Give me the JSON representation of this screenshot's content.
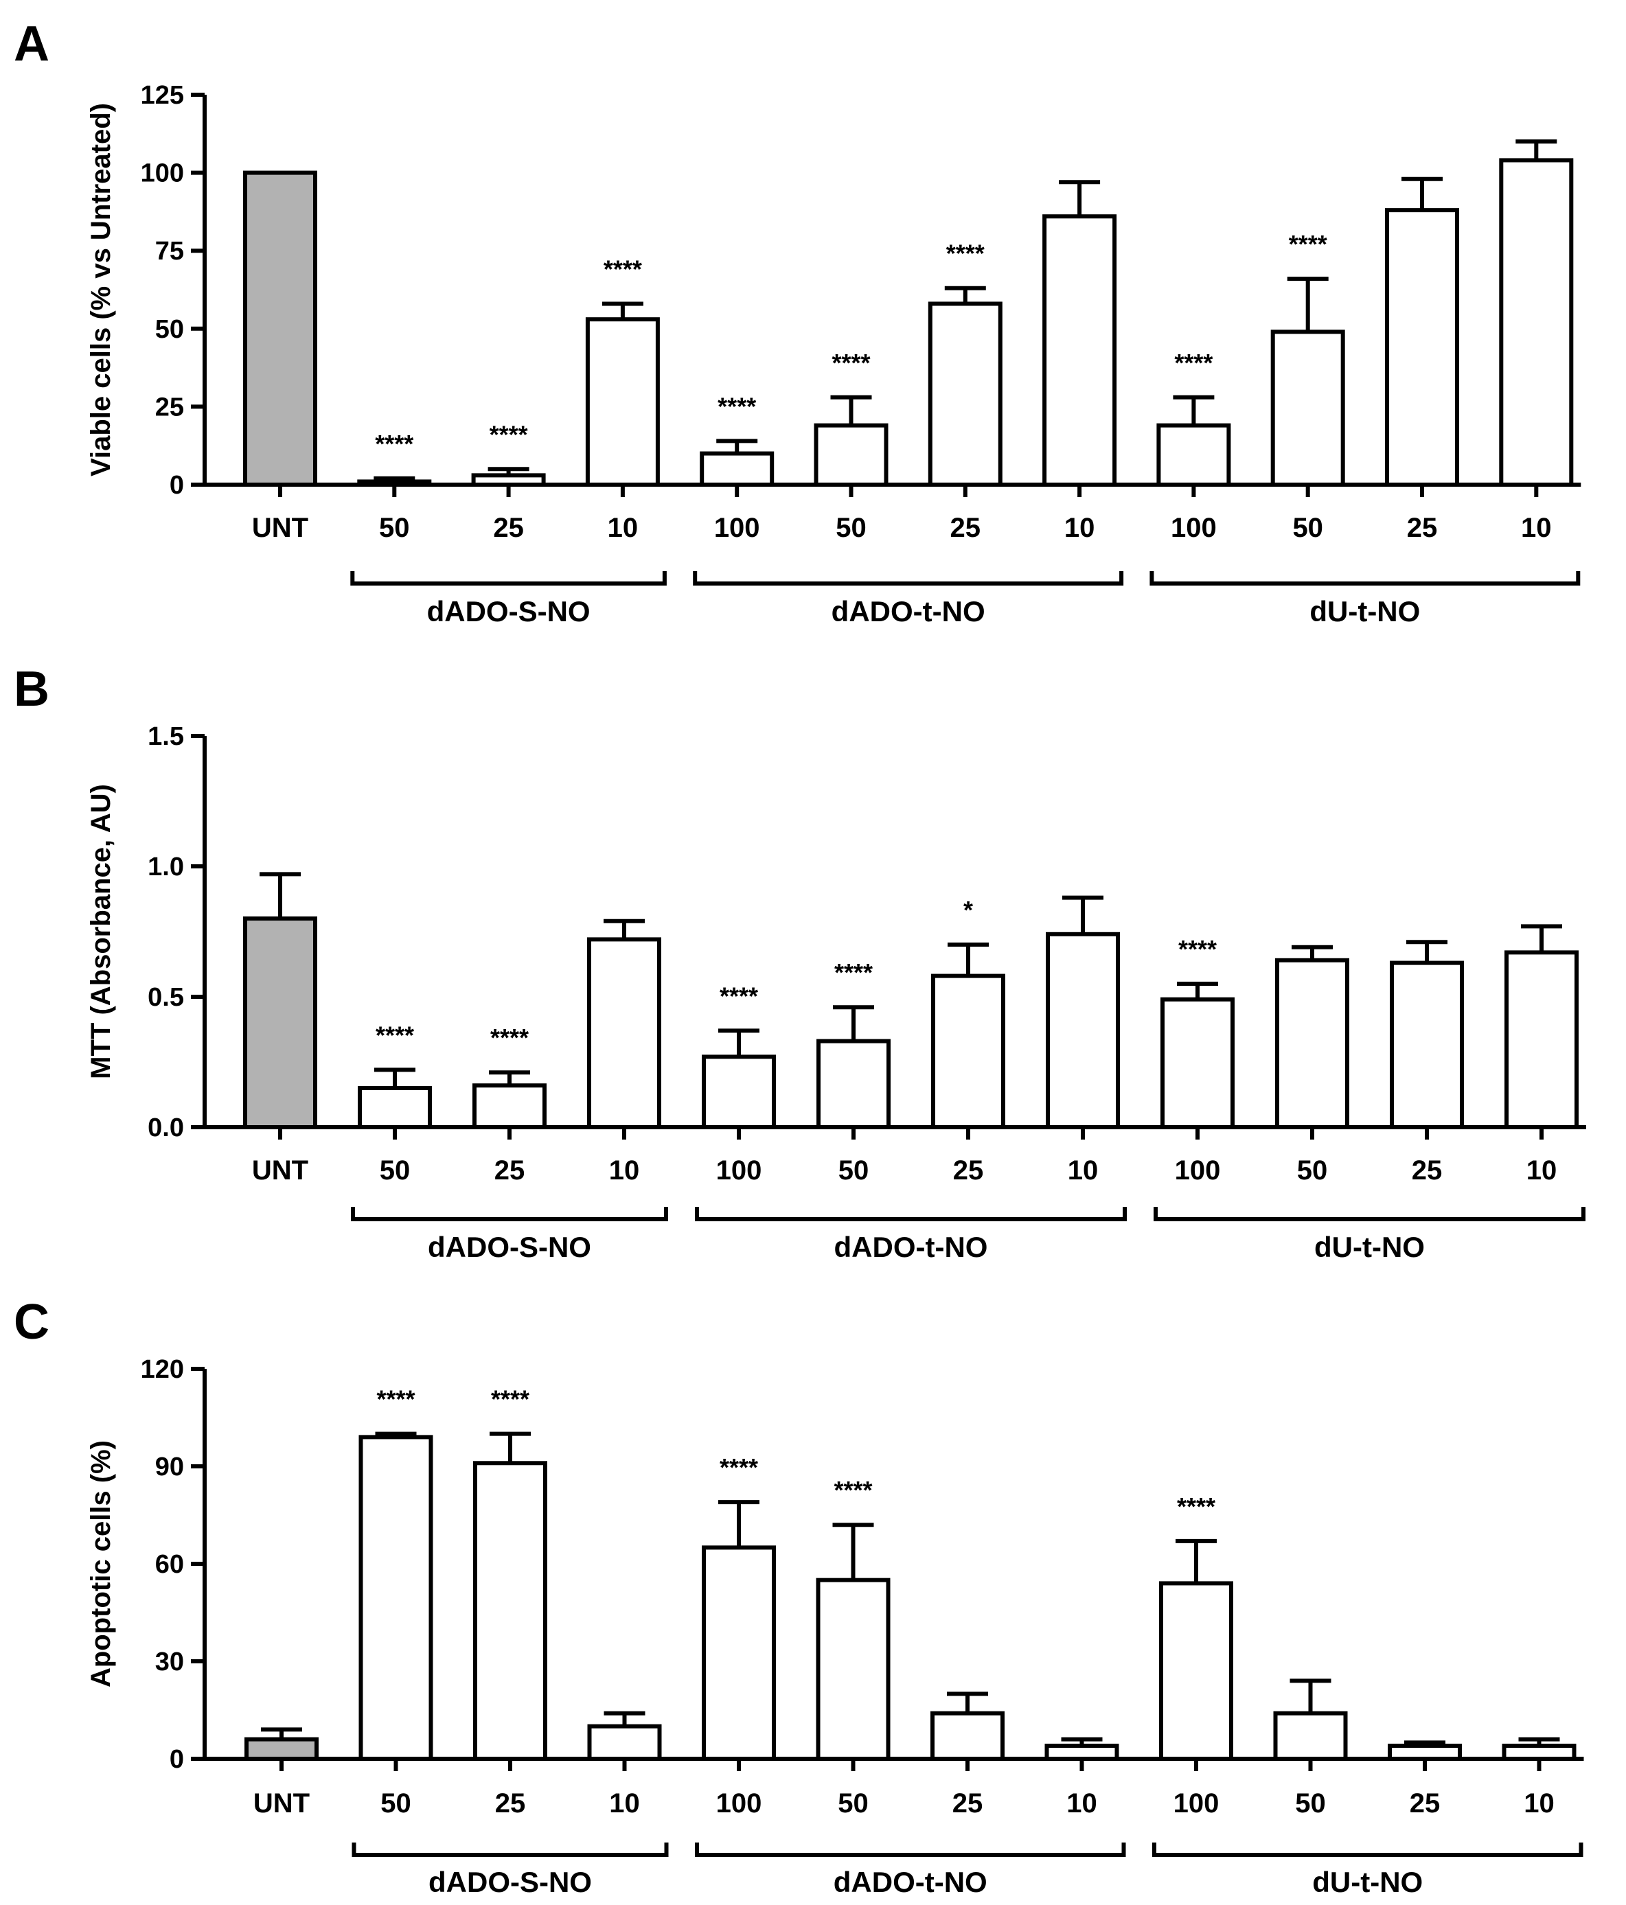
{
  "colors": {
    "control": "#b2b2b2",
    "treated": "#ffffff",
    "stroke": "#000000"
  },
  "chart_data": [
    {
      "type": "bar",
      "panel": "A",
      "title": "",
      "ylabel": "Viable cells (% vs Untreated)",
      "xlabel": "",
      "ylim": [
        0,
        125
      ],
      "yticks": [
        0,
        25,
        50,
        75,
        100,
        125
      ],
      "categories": [
        "UNT",
        "50",
        "25",
        "10",
        "100",
        "50",
        "25",
        "10",
        "100",
        "50",
        "25",
        "10"
      ],
      "values": [
        100,
        1,
        3,
        53,
        10,
        19,
        58,
        86,
        19,
        49,
        88,
        104
      ],
      "errors": [
        0,
        1,
        2,
        5,
        4,
        9,
        5,
        11,
        9,
        17,
        10,
        6
      ],
      "significance": [
        "",
        "****",
        "****",
        "****",
        "****",
        "****",
        "****",
        "",
        "****",
        "****",
        "",
        ""
      ],
      "groups": [
        {
          "label": "dADO-S-NO",
          "start": 1,
          "end": 3
        },
        {
          "label": "dADO-t-NO",
          "start": 4,
          "end": 7
        },
        {
          "label": "dU-t-NO",
          "start": 8,
          "end": 11
        }
      ]
    },
    {
      "type": "bar",
      "panel": "B",
      "title": "",
      "ylabel": "MTT (Absorbance, AU)",
      "xlabel": "",
      "ylim": [
        0,
        1.5
      ],
      "yticks": [
        0,
        0.5,
        1.0,
        1.5
      ],
      "ytick_labels": [
        "0.0",
        "0.5",
        "1.0",
        "1.5"
      ],
      "categories": [
        "UNT",
        "50",
        "25",
        "10",
        "100",
        "50",
        "25",
        "10",
        "100",
        "50",
        "25",
        "10"
      ],
      "values": [
        0.8,
        0.15,
        0.16,
        0.72,
        0.27,
        0.33,
        0.58,
        0.74,
        0.49,
        0.64,
        0.63,
        0.67
      ],
      "errors": [
        0.17,
        0.07,
        0.05,
        0.07,
        0.1,
        0.13,
        0.12,
        0.14,
        0.06,
        0.05,
        0.08,
        0.1
      ],
      "significance": [
        "",
        "****",
        "****",
        "",
        "****",
        "****",
        "*",
        "",
        "****",
        "",
        "",
        ""
      ],
      "groups": [
        {
          "label": "dADO-S-NO",
          "start": 1,
          "end": 3
        },
        {
          "label": "dADO-t-NO",
          "start": 4,
          "end": 7
        },
        {
          "label": "dU-t-NO",
          "start": 8,
          "end": 11
        }
      ]
    },
    {
      "type": "bar",
      "panel": "C",
      "title": "",
      "ylabel": "Apoptotic cells (%)",
      "xlabel": "",
      "ylim": [
        0,
        120
      ],
      "yticks": [
        0,
        30,
        60,
        90,
        120
      ],
      "categories": [
        "UNT",
        "50",
        "25",
        "10",
        "100",
        "50",
        "25",
        "10",
        "100",
        "50",
        "25",
        "10"
      ],
      "values": [
        6,
        99,
        91,
        10,
        65,
        55,
        14,
        4,
        54,
        14,
        4,
        4
      ],
      "errors": [
        3,
        1,
        9,
        4,
        14,
        17,
        6,
        2,
        13,
        10,
        1,
        2
      ],
      "significance": [
        "",
        "****",
        "****",
        "",
        "****",
        "****",
        "",
        "",
        "****",
        "",
        "",
        ""
      ],
      "groups": [
        {
          "label": "dADO-S-NO",
          "start": 1,
          "end": 3
        },
        {
          "label": "dADO-t-NO",
          "start": 4,
          "end": 7
        },
        {
          "label": "dU-t-NO",
          "start": 8,
          "end": 11
        }
      ]
    }
  ]
}
